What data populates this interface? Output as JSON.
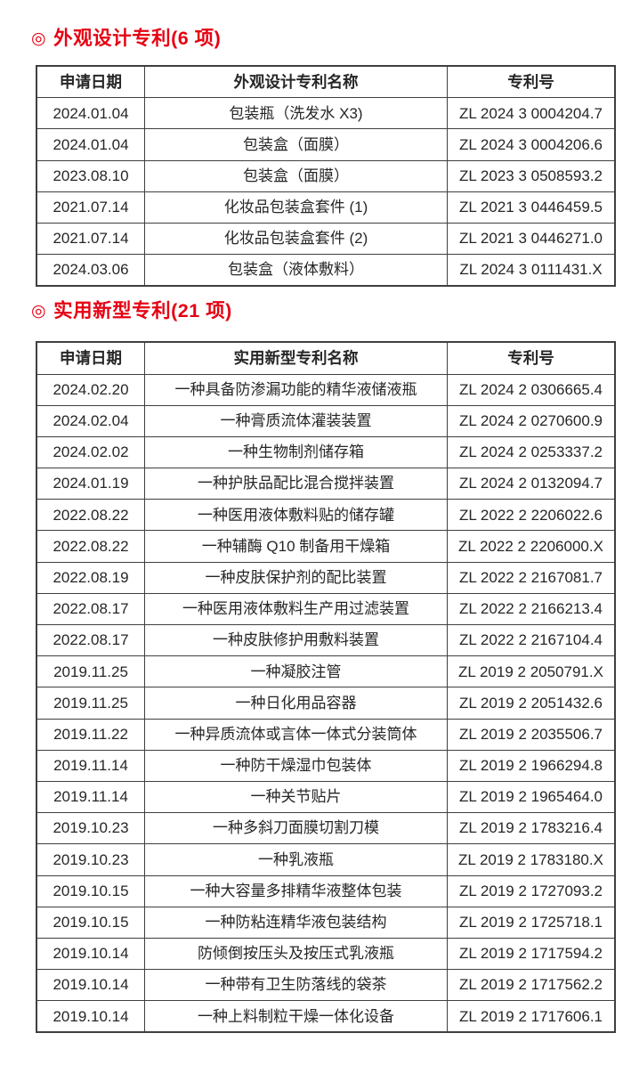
{
  "page": {
    "background": "#ffffff",
    "accent_red": "#e60012",
    "text_color": "#262626",
    "border_color": "#3f3f3f"
  },
  "sections": [
    {
      "bullet": "◎",
      "title": "外观设计专利(6 项)",
      "headers": [
        "申请日期",
        "外观设计专利名称",
        "专利号"
      ],
      "rows": [
        {
          "date": "2024.01.04",
          "name": "包装瓶（洗发水 X3)",
          "number": "ZL 2024 3 0004204.7"
        },
        {
          "date": "2024.01.04",
          "name": "包装盒（面膜）",
          "number": "ZL 2024 3 0004206.6"
        },
        {
          "date": "2023.08.10",
          "name": "包装盒（面膜）",
          "number": "ZL 2023 3 0508593.2"
        },
        {
          "date": "2021.07.14",
          "name": "化妆品包装盒套件 (1)",
          "number": "ZL 2021 3 0446459.5"
        },
        {
          "date": "2021.07.14",
          "name": "化妆品包装盒套件 (2)",
          "number": "ZL 2021 3 0446271.0"
        },
        {
          "date": "2024.03.06",
          "name": "包装盒（液体敷料）",
          "number": "ZL 2024 3 0111431.X"
        }
      ]
    },
    {
      "bullet": "◎",
      "title": "实用新型专利(21 项)",
      "headers": [
        "申请日期",
        "实用新型专利名称",
        "专利号"
      ],
      "rows": [
        {
          "date": "2024.02.20",
          "name": "一种具备防渗漏功能的精华液储液瓶",
          "number": "ZL 2024 2 0306665.4"
        },
        {
          "date": "2024.02.04",
          "name": "一种膏质流体灌装装置",
          "number": "ZL 2024 2 0270600.9"
        },
        {
          "date": "2024.02.02",
          "name": "一种生物制剂储存箱",
          "number": "ZL 2024 2 0253337.2"
        },
        {
          "date": "2024.01.19",
          "name": "一种护肤品配比混合搅拌装置",
          "number": "ZL 2024 2 0132094.7"
        },
        {
          "date": "2022.08.22",
          "name": "一种医用液体敷料贴的储存罐",
          "number": "ZL 2022 2 2206022.6"
        },
        {
          "date": "2022.08.22",
          "name": "一种辅酶 Q10 制备用干燥箱",
          "number": "ZL 2022 2 2206000.X"
        },
        {
          "date": "2022.08.19",
          "name": "一种皮肤保护剂的配比装置",
          "number": "ZL 2022 2 2167081.7"
        },
        {
          "date": "2022.08.17",
          "name": "一种医用液体敷料生产用过滤装置",
          "number": "ZL 2022 2 2166213.4"
        },
        {
          "date": "2022.08.17",
          "name": "一种皮肤修护用敷料装置",
          "number": "ZL 2022 2 2167104.4"
        },
        {
          "date": "2019.11.25",
          "name": "一种凝胶注管",
          "number": "ZL 2019 2 2050791.X"
        },
        {
          "date": "2019.11.25",
          "name": "一种日化用品容器",
          "number": "ZL 2019 2 2051432.6"
        },
        {
          "date": "2019.11.22",
          "name": "一种异质流体或言体一体式分装筒体",
          "number": "ZL 2019 2 2035506.7"
        },
        {
          "date": "2019.11.14",
          "name": "一种防干燥湿巾包装体",
          "number": "ZL 2019 2 1966294.8"
        },
        {
          "date": "2019.11.14",
          "name": "一种关节贴片",
          "number": "ZL 2019 2 1965464.0"
        },
        {
          "date": "2019.10.23",
          "name": "一种多斜刀面膜切割刀模",
          "number": "ZL 2019 2 1783216.4"
        },
        {
          "date": "2019.10.23",
          "name": "一种乳液瓶",
          "number": "ZL 2019 2 1783180.X"
        },
        {
          "date": "2019.10.15",
          "name": "一种大容量多排精华液整体包装",
          "number": "ZL 2019 2 1727093.2"
        },
        {
          "date": "2019.10.15",
          "name": "一种防粘连精华液包装结构",
          "number": "ZL 2019 2 1725718.1"
        },
        {
          "date": "2019.10.14",
          "name": "防倾倒按压头及按压式乳液瓶",
          "number": "ZL 2019 2 1717594.2"
        },
        {
          "date": "2019.10.14",
          "name": "一种带有卫生防落线的袋茶",
          "number": "ZL 2019 2 1717562.2"
        },
        {
          "date": "2019.10.14",
          "name": "一种上料制粒干燥一体化设备",
          "number": "ZL 2019 2 1717606.1"
        }
      ]
    }
  ]
}
